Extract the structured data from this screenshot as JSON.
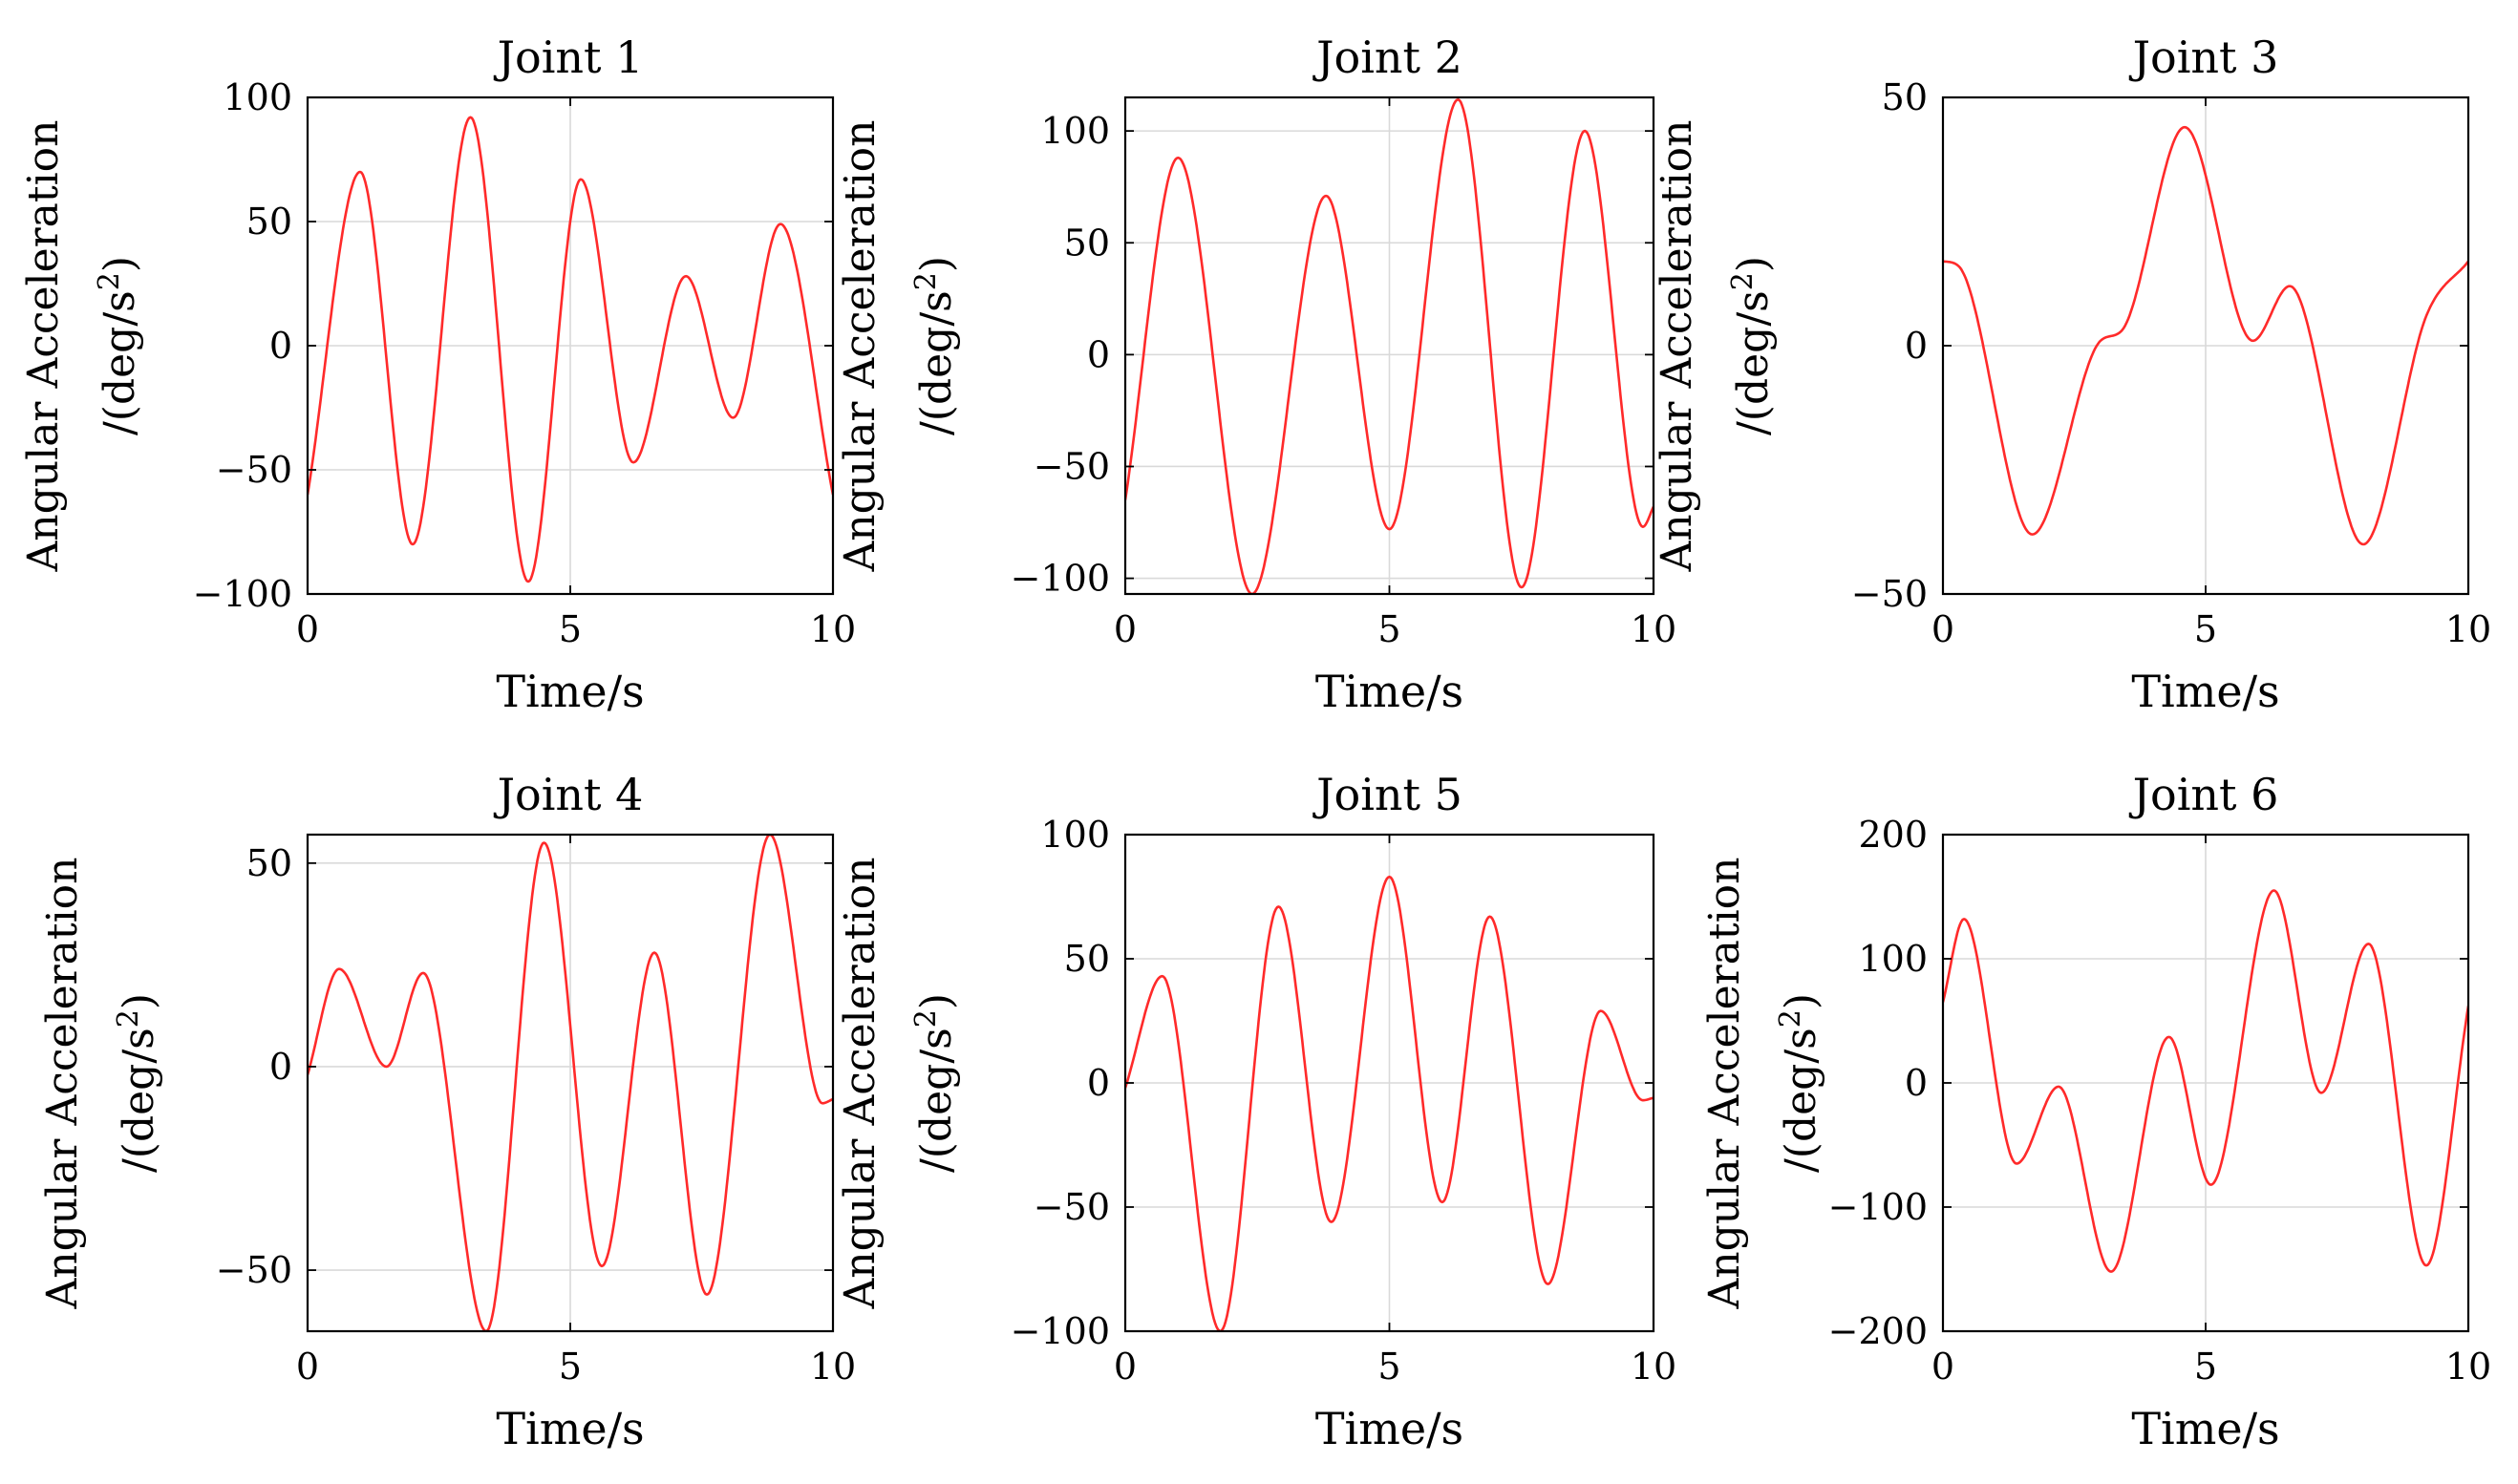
{
  "colors": {
    "line": "#ff2a2a",
    "grid": "#d9d9d9",
    "axes": "#000000",
    "background": "#ffffff"
  },
  "chart_data": [
    {
      "type": "line",
      "title": "Joint 1",
      "xlabel": "Time/s",
      "ylabel_line1": "Angular Acceleration",
      "ylabel_unit": "/(deg/s",
      "ylabel_sup": "2",
      "ylabel_close": ")",
      "xlim": [
        0,
        10
      ],
      "ylim": [
        -100,
        100
      ],
      "xticks": [
        0,
        5,
        10
      ],
      "xtick_labels": [
        "0",
        "5",
        "10"
      ],
      "yticks": [
        -100,
        -50,
        0,
        50,
        100
      ],
      "ytick_labels": [
        "−100",
        "−50",
        "0",
        "50",
        "100"
      ],
      "grid": true,
      "series": [
        {
          "name": "Joint 1",
          "x": [
            0,
            1,
            2,
            3.1,
            4.2,
            5.2,
            6.2,
            7.2,
            8.1,
            9,
            10
          ],
          "y": [
            -60,
            70,
            -80,
            92,
            -95,
            67,
            -47,
            28,
            -29,
            49,
            -60
          ]
        }
      ]
    },
    {
      "type": "line",
      "title": "Joint 2",
      "xlabel": "Time/s",
      "ylabel_line1": "Angular Acceleration",
      "ylabel_unit": "/(deg/s",
      "ylabel_sup": "2",
      "ylabel_close": ")",
      "xlim": [
        0,
        10
      ],
      "ylim": [
        -107,
        115
      ],
      "xticks": [
        0,
        5,
        10
      ],
      "xtick_labels": [
        "0",
        "5",
        "10"
      ],
      "yticks": [
        -100,
        -50,
        0,
        50,
        100
      ],
      "ytick_labels": [
        "−100",
        "−50",
        "0",
        "50",
        "100"
      ],
      "grid": true,
      "series": [
        {
          "name": "Joint 2",
          "x": [
            0,
            1,
            2.4,
            3.8,
            5,
            6.3,
            7.5,
            8.7,
            9.8,
            10
          ],
          "y": [
            -65,
            88,
            -107,
            71,
            -78,
            114,
            -104,
            100,
            -77,
            -68
          ]
        }
      ]
    },
    {
      "type": "line",
      "title": "Joint 3",
      "xlabel": "Time/s",
      "ylabel_line1": "Angular Acceleration",
      "ylabel_unit": "/(deg/s",
      "ylabel_sup": "2",
      "ylabel_close": ")",
      "xlim": [
        0,
        10
      ],
      "ylim": [
        -50,
        50
      ],
      "xticks": [
        0,
        5,
        10
      ],
      "xtick_labels": [
        "0",
        "5",
        "10"
      ],
      "yticks": [
        -50,
        0,
        50
      ],
      "ytick_labels": [
        "−50",
        "0",
        "50"
      ],
      "grid": true,
      "series": [
        {
          "name": "Joint 3",
          "x": [
            0,
            0.3,
            1.7,
            3,
            3.4,
            4.6,
            5.9,
            6.6,
            8,
            9.2,
            10
          ],
          "y": [
            17,
            16,
            -38,
            1,
            3,
            44,
            1,
            12,
            -40,
            6,
            17
          ]
        }
      ]
    },
    {
      "type": "line",
      "title": "Joint 4",
      "xlabel": "Time/s",
      "ylabel_line1": "Angular Acceleration",
      "ylabel_unit": "/(deg/s",
      "ylabel_sup": "2",
      "ylabel_close": ")",
      "xlim": [
        0,
        10
      ],
      "ylim": [
        -65,
        57
      ],
      "xticks": [
        0,
        5,
        10
      ],
      "xtick_labels": [
        "0",
        "5",
        "10"
      ],
      "yticks": [
        -50,
        0,
        50
      ],
      "ytick_labels": [
        "−50",
        "0",
        "50"
      ],
      "grid": true,
      "series": [
        {
          "name": "Joint 4",
          "x": [
            0,
            0.6,
            1.5,
            2.2,
            3.4,
            4.5,
            5.6,
            6.6,
            7.6,
            8.8,
            9.8,
            10
          ],
          "y": [
            -2,
            24,
            0,
            23,
            -65,
            55,
            -49,
            28,
            -56,
            57,
            -9,
            -8
          ]
        }
      ]
    },
    {
      "type": "line",
      "title": "Joint 5",
      "xlabel": "Time/s",
      "ylabel_line1": "Angular Acceleration",
      "ylabel_unit": "/(deg/s",
      "ylabel_sup": "2",
      "ylabel_close": ")",
      "xlim": [
        0,
        10
      ],
      "ylim": [
        -100,
        100
      ],
      "xticks": [
        0,
        5,
        10
      ],
      "xtick_labels": [
        "0",
        "5",
        "10"
      ],
      "yticks": [
        -100,
        -50,
        0,
        50,
        100
      ],
      "ytick_labels": [
        "−100",
        "−50",
        "0",
        "50",
        "100"
      ],
      "grid": true,
      "series": [
        {
          "name": "Joint 5",
          "x": [
            0,
            0.7,
            1.8,
            2.9,
            3.9,
            5,
            6,
            6.9,
            8,
            9,
            9.8,
            10
          ],
          "y": [
            -2,
            43,
            -100,
            71,
            -56,
            83,
            -48,
            67,
            -81,
            29,
            -7,
            -6
          ]
        }
      ]
    },
    {
      "type": "line",
      "title": "Joint 6",
      "xlabel": "Time/s",
      "ylabel_line1": "Angular Acceleration",
      "ylabel_unit": "/(deg/s",
      "ylabel_sup": "2",
      "ylabel_close": ")",
      "xlim": [
        0,
        10
      ],
      "ylim": [
        -200,
        200
      ],
      "xticks": [
        0,
        5,
        10
      ],
      "xtick_labels": [
        "0",
        "5",
        "10"
      ],
      "yticks": [
        -200,
        -100,
        0,
        100,
        200
      ],
      "ytick_labels": [
        "−200",
        "−100",
        "0",
        "100",
        "200"
      ],
      "grid": true,
      "series": [
        {
          "name": "Joint 6",
          "x": [
            0,
            0.4,
            1.4,
            2.2,
            3.2,
            4.3,
            5.1,
            6.3,
            7.2,
            8.1,
            9.2,
            10
          ],
          "y": [
            65,
            132,
            -65,
            -3,
            -152,
            37,
            -82,
            155,
            -8,
            112,
            -147,
            62
          ]
        }
      ]
    }
  ]
}
